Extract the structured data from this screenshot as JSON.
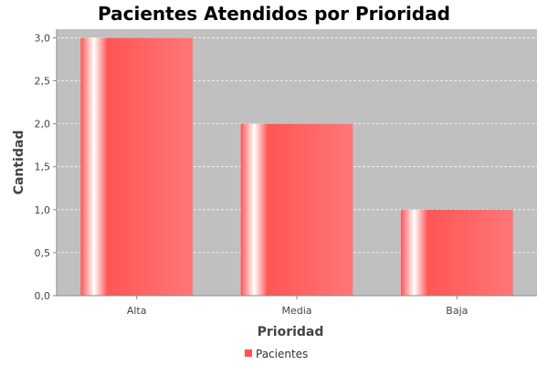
{
  "chart_data": {
    "type": "bar",
    "title": "Pacientes Atendidos por Prioridad",
    "xlabel": "Prioridad",
    "ylabel": "Cantidad",
    "categories": [
      "Alta",
      "Media",
      "Baja"
    ],
    "series": [
      {
        "name": "Pacientes",
        "values": [
          3.0,
          2.0,
          1.0
        ],
        "color": "#ff5555"
      }
    ],
    "ylim": [
      0,
      3.1
    ],
    "yticks": [
      0,
      0.5,
      1.0,
      1.5,
      2.0,
      2.5,
      3.0
    ],
    "ytick_labels": [
      "0,0",
      "0,5",
      "1,0",
      "1,5",
      "2,0",
      "2,5",
      "3,0"
    ],
    "grid": true,
    "plot_background": "#c0c0c0",
    "legend_position": "bottom"
  }
}
